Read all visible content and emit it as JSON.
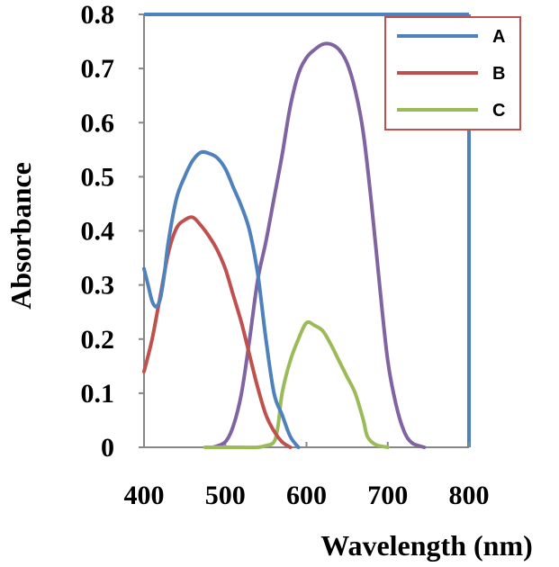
{
  "chart_data": {
    "type": "line",
    "title": "",
    "xlabel": "Wavelength (nm)",
    "ylabel": "Absorbance",
    "xlim": [
      400,
      800
    ],
    "ylim": [
      0,
      0.8
    ],
    "xticks": [
      "400",
      "500",
      "600",
      "700",
      "800"
    ],
    "yticks": [
      "0",
      "0.1",
      "0.2",
      "0.3",
      "0.4",
      "0.5",
      "0.6",
      "0.7",
      "0.8"
    ],
    "legend_position": "top-right",
    "series": [
      {
        "name": "A",
        "color": "#4F81BD",
        "points": [
          [
            400,
            0.33
          ],
          [
            405,
            0.3
          ],
          [
            410,
            0.27
          ],
          [
            415,
            0.26
          ],
          [
            420,
            0.275
          ],
          [
            425,
            0.32
          ],
          [
            430,
            0.38
          ],
          [
            440,
            0.46
          ],
          [
            450,
            0.5
          ],
          [
            460,
            0.53
          ],
          [
            470,
            0.545
          ],
          [
            480,
            0.543
          ],
          [
            490,
            0.535
          ],
          [
            500,
            0.515
          ],
          [
            510,
            0.48
          ],
          [
            520,
            0.445
          ],
          [
            530,
            0.4
          ],
          [
            540,
            0.32
          ],
          [
            550,
            0.2
          ],
          [
            560,
            0.1
          ],
          [
            570,
            0.06
          ],
          [
            580,
            0.02
          ],
          [
            590,
            0.0
          ]
        ]
      },
      {
        "name": "B",
        "color": "#C0504D",
        "points": [
          [
            400,
            0.14
          ],
          [
            410,
            0.2
          ],
          [
            420,
            0.28
          ],
          [
            430,
            0.36
          ],
          [
            440,
            0.405
          ],
          [
            450,
            0.42
          ],
          [
            460,
            0.425
          ],
          [
            470,
            0.41
          ],
          [
            480,
            0.39
          ],
          [
            490,
            0.365
          ],
          [
            500,
            0.33
          ],
          [
            510,
            0.28
          ],
          [
            520,
            0.23
          ],
          [
            530,
            0.17
          ],
          [
            540,
            0.11
          ],
          [
            550,
            0.06
          ],
          [
            560,
            0.03
          ],
          [
            570,
            0.01
          ],
          [
            580,
            0.0
          ]
        ]
      },
      {
        "name": "",
        "color": "#8064A2",
        "points": [
          [
            485,
            0.0
          ],
          [
            500,
            0.01
          ],
          [
            510,
            0.04
          ],
          [
            520,
            0.1
          ],
          [
            530,
            0.2
          ],
          [
            540,
            0.31
          ],
          [
            550,
            0.38
          ],
          [
            560,
            0.46
          ],
          [
            570,
            0.54
          ],
          [
            580,
            0.63
          ],
          [
            590,
            0.69
          ],
          [
            600,
            0.72
          ],
          [
            610,
            0.735
          ],
          [
            620,
            0.745
          ],
          [
            630,
            0.745
          ],
          [
            640,
            0.735
          ],
          [
            650,
            0.71
          ],
          [
            660,
            0.66
          ],
          [
            670,
            0.58
          ],
          [
            680,
            0.45
          ],
          [
            690,
            0.3
          ],
          [
            700,
            0.16
          ],
          [
            710,
            0.08
          ],
          [
            720,
            0.03
          ],
          [
            730,
            0.008
          ],
          [
            745,
            0.0
          ]
        ]
      },
      {
        "name": "C",
        "color": "#9BBB59",
        "points": [
          [
            475,
            0.0
          ],
          [
            500,
            0.0
          ],
          [
            520,
            0.0
          ],
          [
            540,
            0.0
          ],
          [
            550,
            0.003
          ],
          [
            560,
            0.01
          ],
          [
            565,
            0.04
          ],
          [
            570,
            0.1
          ],
          [
            580,
            0.16
          ],
          [
            590,
            0.2
          ],
          [
            600,
            0.23
          ],
          [
            610,
            0.225
          ],
          [
            620,
            0.215
          ],
          [
            630,
            0.19
          ],
          [
            640,
            0.16
          ],
          [
            650,
            0.13
          ],
          [
            660,
            0.1
          ],
          [
            670,
            0.05
          ],
          [
            675,
            0.02
          ],
          [
            685,
            0.005
          ],
          [
            700,
            0.0
          ]
        ]
      }
    ]
  }
}
